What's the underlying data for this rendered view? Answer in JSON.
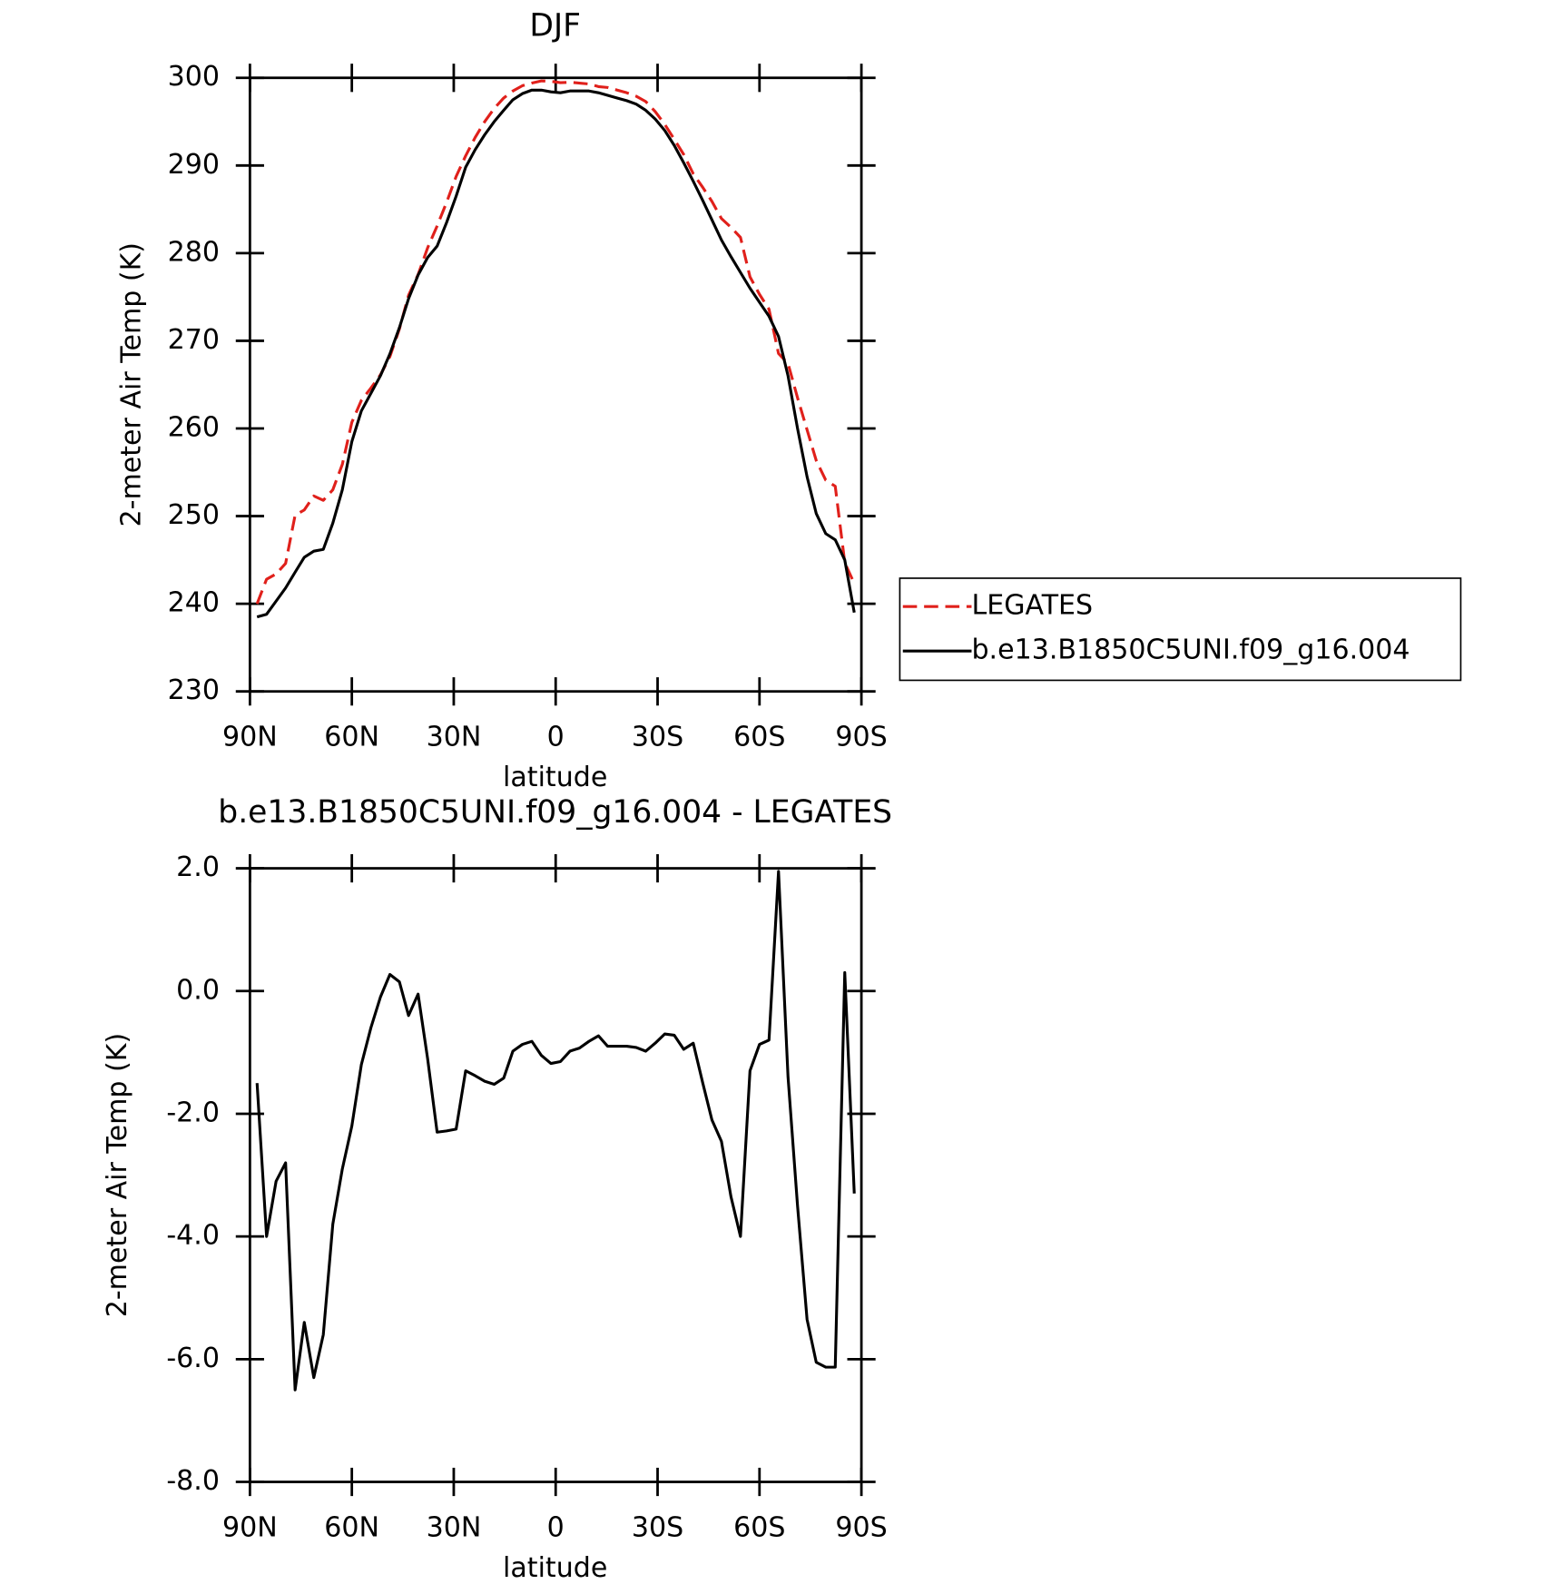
{
  "chart_data": [
    {
      "type": "line",
      "title": "DJF",
      "xlabel": "latitude",
      "ylabel": "2-meter Air Temp (K)",
      "x": [
        87.9,
        85.1,
        82.3,
        79.5,
        76.7,
        74.0,
        71.2,
        68.4,
        65.6,
        62.8,
        60.0,
        57.2,
        54.4,
        51.6,
        48.8,
        46.0,
        43.3,
        40.5,
        37.7,
        34.9,
        32.1,
        29.3,
        26.5,
        23.7,
        20.9,
        18.1,
        15.3,
        12.6,
        9.8,
        7.0,
        4.2,
        1.4,
        -1.4,
        -4.2,
        -7.0,
        -9.8,
        -12.6,
        -15.3,
        -18.1,
        -20.9,
        -23.7,
        -26.5,
        -29.3,
        -32.1,
        -34.9,
        -37.7,
        -40.5,
        -43.3,
        -46.0,
        -48.8,
        -51.6,
        -54.4,
        -57.2,
        -60.0,
        -62.8,
        -65.6,
        -68.4,
        -71.2,
        -74.0,
        -76.7,
        -79.5,
        -82.3,
        -85.1,
        -87.9
      ],
      "series": [
        {
          "name": "LEGATES",
          "color": "#e0201b",
          "style": "dashed",
          "values": [
            240.0,
            242.8,
            243.4,
            244.6,
            250.1,
            250.7,
            252.3,
            251.8,
            253.0,
            255.9,
            260.7,
            263.2,
            264.6,
            266.1,
            268.2,
            271.35,
            275.2,
            277.55,
            280.6,
            283.1,
            285.8,
            288.75,
            291.1,
            293.2,
            295.0,
            296.5,
            297.7,
            298.5,
            299.1,
            299.4,
            299.65,
            299.6,
            299.45,
            299.5,
            299.4,
            299.3,
            299.0,
            298.9,
            298.6,
            298.3,
            297.9,
            297.3,
            296.15,
            294.7,
            293.0,
            291.25,
            289.05,
            287.5,
            285.9,
            283.95,
            282.95,
            281.8,
            277.3,
            275.3,
            273.6,
            268.55,
            267.4,
            263.5,
            259.85,
            256.35,
            254.1,
            253.4,
            244.7,
            242.3
          ]
        },
        {
          "name": "b.e13.B1850C5UNI.f09_g16.004",
          "color": "#000000",
          "style": "solid",
          "values": [
            238.5,
            238.8,
            240.3,
            241.8,
            243.6,
            245.3,
            246.0,
            246.2,
            249.2,
            253.0,
            258.5,
            262.0,
            264.0,
            266.0,
            268.5,
            271.5,
            274.8,
            277.5,
            279.5,
            280.8,
            283.5,
            286.5,
            289.8,
            291.8,
            293.5,
            295.0,
            296.3,
            297.5,
            298.2,
            298.6,
            298.6,
            298.4,
            298.3,
            298.5,
            298.5,
            298.5,
            298.3,
            298.0,
            297.7,
            297.4,
            297.0,
            296.3,
            295.3,
            294.0,
            292.3,
            290.3,
            288.2,
            286.0,
            283.8,
            281.5,
            279.6,
            277.8,
            276.0,
            274.4,
            272.8,
            270.5,
            266.0,
            260.0,
            254.5,
            250.3,
            248.0,
            247.3,
            245.0,
            239.0
          ]
        }
      ],
      "xlim": [
        90,
        -90
      ],
      "xticks": [
        {
          "value": 90,
          "label": "90N"
        },
        {
          "value": 60,
          "label": "60N"
        },
        {
          "value": 30,
          "label": "30N"
        },
        0,
        {
          "value": -30,
          "label": "30S"
        },
        {
          "value": -60,
          "label": "60S"
        },
        {
          "value": -90,
          "label": "90S"
        }
      ],
      "ylim": [
        230,
        300
      ],
      "yticks": [
        230,
        240,
        250,
        260,
        270,
        280,
        290,
        300
      ],
      "legend": "right"
    },
    {
      "type": "line",
      "title": "b.e13.B1850C5UNI.f09_g16.004 - LEGATES",
      "xlabel": "latitude",
      "ylabel": "2-meter Air Temp (K)",
      "x": [
        87.9,
        85.1,
        82.3,
        79.5,
        76.7,
        74.0,
        71.2,
        68.4,
        65.6,
        62.8,
        60.0,
        57.2,
        54.4,
        51.6,
        48.8,
        46.0,
        43.3,
        40.5,
        37.7,
        34.9,
        32.1,
        29.3,
        26.5,
        23.7,
        20.9,
        18.1,
        15.3,
        12.6,
        9.8,
        7.0,
        4.2,
        1.4,
        -1.4,
        -4.2,
        -7.0,
        -9.8,
        -12.6,
        -15.3,
        -18.1,
        -20.9,
        -23.7,
        -26.5,
        -29.3,
        -32.1,
        -34.9,
        -37.7,
        -40.5,
        -43.3,
        -46.0,
        -48.8,
        -51.6,
        -54.4,
        -57.2,
        -60.0,
        -62.8,
        -65.6,
        -68.4,
        -71.2,
        -74.0,
        -76.7,
        -79.5,
        -82.3,
        -85.1,
        -87.9
      ],
      "color": "#000000",
      "values": [
        -1.5,
        -4.0,
        -3.1,
        -2.8,
        -6.5,
        -5.4,
        -6.3,
        -5.6,
        -3.8,
        -2.9,
        -2.2,
        -1.2,
        -0.6,
        -0.1,
        0.27,
        0.15,
        -0.4,
        -0.05,
        -1.1,
        -2.3,
        -2.28,
        -2.25,
        -1.3,
        -1.38,
        -1.47,
        -1.52,
        -1.42,
        -0.98,
        -0.87,
        -0.82,
        -1.05,
        -1.18,
        -1.15,
        -0.98,
        -0.93,
        -0.82,
        -0.73,
        -0.9,
        -0.9,
        -0.9,
        -0.92,
        -0.98,
        -0.85,
        -0.7,
        -0.72,
        -0.95,
        -0.85,
        -1.5,
        -2.1,
        -2.45,
        -3.35,
        -4.0,
        -1.3,
        -0.87,
        -0.8,
        1.95,
        -1.4,
        -3.5,
        -5.35,
        -6.05,
        -6.13,
        -6.13,
        0.3,
        -3.3
      ],
      "xlim": [
        90,
        -90
      ],
      "xticks": [
        {
          "value": 90,
          "label": "90N"
        },
        {
          "value": 60,
          "label": "60N"
        },
        {
          "value": 30,
          "label": "30N"
        },
        0,
        {
          "value": -30,
          "label": "30S"
        },
        {
          "value": -60,
          "label": "60S"
        },
        {
          "value": -90,
          "label": "90S"
        }
      ],
      "ylim": [
        -8,
        2
      ],
      "yticks": [
        {
          "value": -8,
          "label": "-8.0"
        },
        {
          "value": -6,
          "label": "-6.0"
        },
        {
          "value": -4,
          "label": "-4.0"
        },
        {
          "value": -2,
          "label": "-2.0"
        },
        {
          "value": 0,
          "label": "0.0"
        },
        {
          "value": 2,
          "label": "2.0"
        }
      ]
    }
  ]
}
